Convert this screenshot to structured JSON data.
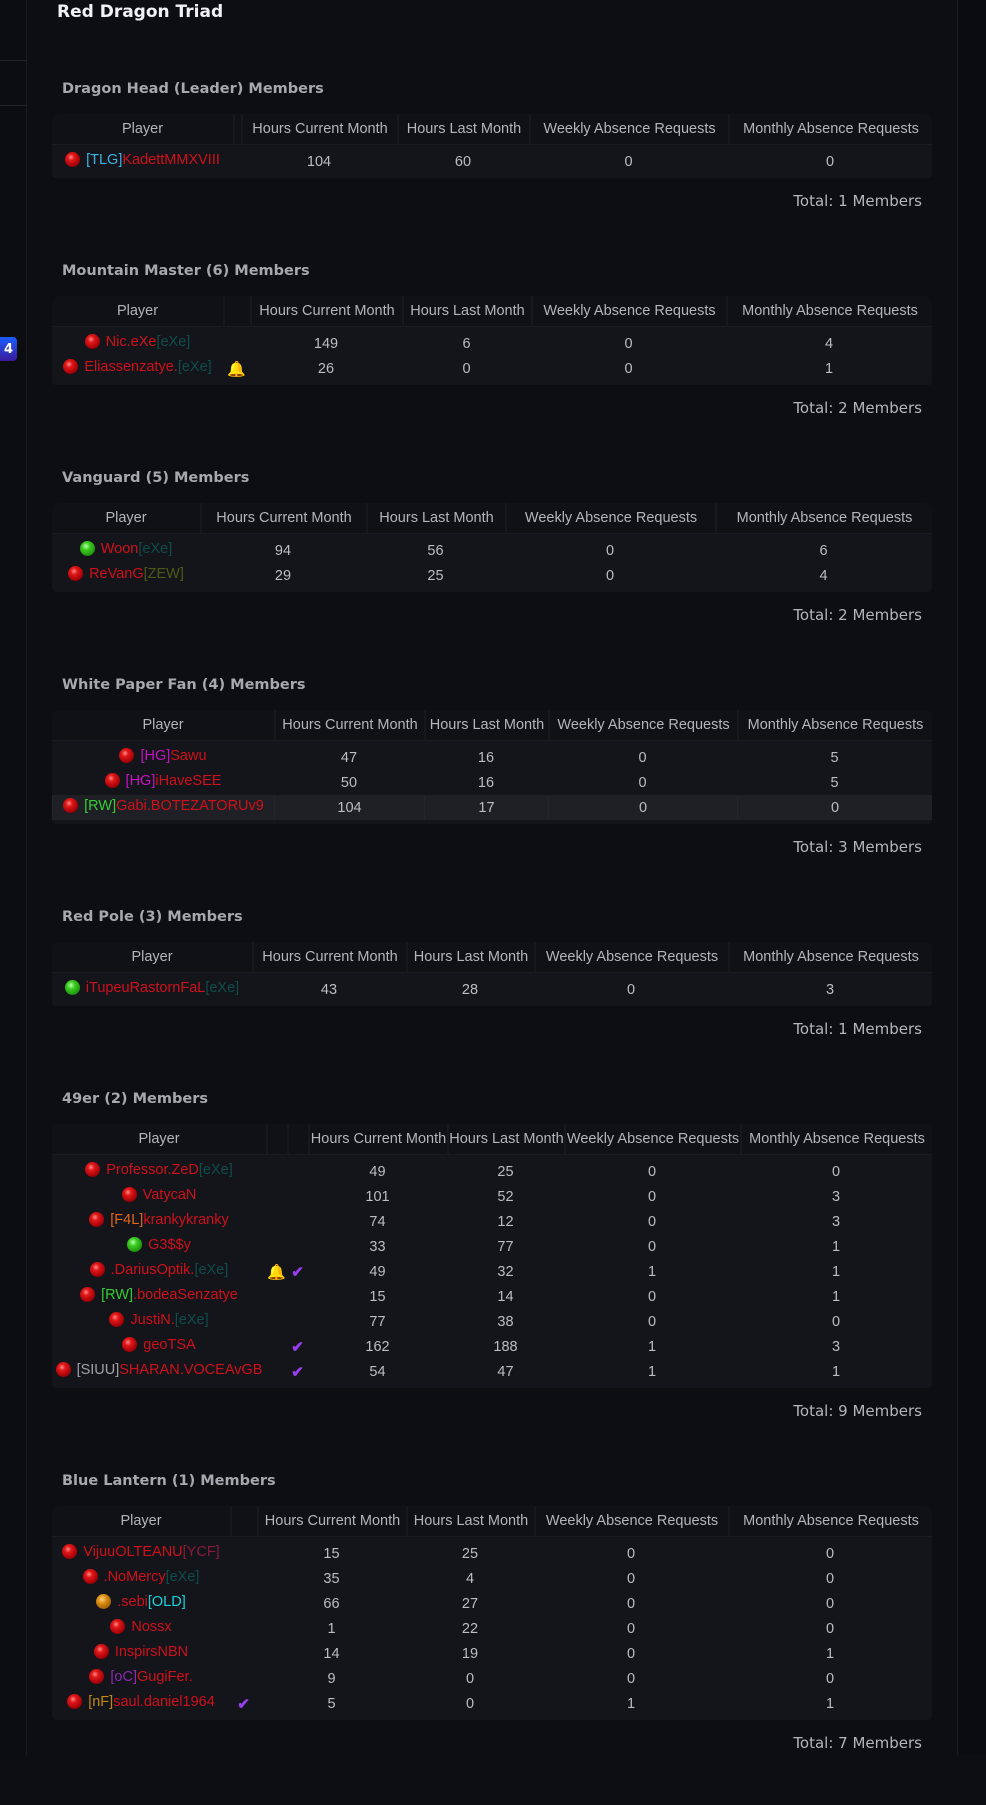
{
  "page_title": "Red Dragon Triad",
  "sidebar": {
    "badge_count": "4"
  },
  "columns": {
    "player": "Player",
    "hcm": "Hours Current Month",
    "hlm": "Hours Last Month",
    "war": "Weekly Absence Requests",
    "mar": "Monthly Absence Requests"
  },
  "colors": {
    "name": "#d0101a",
    "eXe": "#0e4d4a",
    "TLG": "#3bb4e6",
    "ZEW": "#4a5a14",
    "HG": "#c412c4",
    "RW": "#33cc33",
    "F4L": "#e0661a",
    "SIUU": "#a0a0a8",
    "YCF": "#8a1a3a",
    "OLD": "#1ad4e0",
    "oC": "#8a2ab0",
    "nF": "#c08a10",
    "bell": "#f0a500",
    "check": "#9a3cf0"
  },
  "sections": [
    {
      "title": "Dragon Head (Leader) Members",
      "total": "Total: 1 Members",
      "extra_cols": 1,
      "rows": [
        {
          "status": "red",
          "parts": [
            [
              "[TLG]",
              "#3bb4e6"
            ],
            [
              "KadettMMXVIII",
              "#d0101a"
            ]
          ],
          "icons": [],
          "hcm": "104",
          "hlm": "60",
          "war": "0",
          "mar": "0"
        }
      ]
    },
    {
      "title": "Mountain Master (6) Members",
      "total": "Total: 2 Members",
      "extra_cols": 1,
      "rows": [
        {
          "status": "red",
          "parts": [
            [
              "Nic.eXe",
              "#d0101a"
            ],
            [
              "[eXe]",
              "#0e4d4a"
            ]
          ],
          "icons": [],
          "hcm": "149",
          "hlm": "6",
          "war": "0",
          "mar": "4"
        },
        {
          "status": "red",
          "parts": [
            [
              "Eliassenzatye.",
              "#d0101a"
            ],
            [
              "[eXe]",
              "#0e4d4a"
            ]
          ],
          "icons": [
            "bell"
          ],
          "hcm": "26",
          "hlm": "0",
          "war": "0",
          "mar": "1"
        }
      ]
    },
    {
      "title": "Vanguard (5) Members",
      "total": "Total: 2 Members",
      "extra_cols": 0,
      "rows": [
        {
          "status": "green",
          "parts": [
            [
              "Woon",
              "#d0101a"
            ],
            [
              "[eXe]",
              "#0e4d4a"
            ]
          ],
          "icons": [],
          "hcm": "94",
          "hlm": "56",
          "war": "0",
          "mar": "6"
        },
        {
          "status": "red",
          "parts": [
            [
              "ReVanG",
              "#d0101a"
            ],
            [
              "[ZEW]",
              "#4a5a14"
            ]
          ],
          "icons": [],
          "hcm": "29",
          "hlm": "25",
          "war": "0",
          "mar": "4"
        }
      ]
    },
    {
      "title": "White Paper Fan (4) Members",
      "total": "Total: 3 Members",
      "extra_cols": 0,
      "rows": [
        {
          "status": "red",
          "parts": [
            [
              "[HG]",
              "#c412c4"
            ],
            [
              "Sawu",
              "#d0101a"
            ]
          ],
          "icons": [],
          "hcm": "47",
          "hlm": "16",
          "war": "0",
          "mar": "5"
        },
        {
          "status": "red",
          "parts": [
            [
              "[HG]",
              "#c412c4"
            ],
            [
              "iHaveSEE",
              "#d0101a"
            ]
          ],
          "icons": [],
          "hcm": "50",
          "hlm": "16",
          "war": "0",
          "mar": "5"
        },
        {
          "status": "red",
          "parts": [
            [
              "[RW]",
              "#33cc33"
            ],
            [
              "Gabi.BOTEZATORUv9",
              "#d0101a"
            ]
          ],
          "icons": [],
          "hcm": "104",
          "hlm": "17",
          "war": "0",
          "mar": "0",
          "highlighted": true
        }
      ]
    },
    {
      "title": "Red Pole (3) Members",
      "total": "Total: 1 Members",
      "extra_cols": 0,
      "rows": [
        {
          "status": "green",
          "parts": [
            [
              "iTupeuRastornFaL",
              "#d0101a"
            ],
            [
              "[eXe]",
              "#0e4d4a"
            ]
          ],
          "icons": [],
          "hcm": "43",
          "hlm": "28",
          "war": "0",
          "mar": "3"
        }
      ]
    },
    {
      "title": "49er (2) Members",
      "total": "Total: 9 Members",
      "extra_cols": 2,
      "rows": [
        {
          "status": "red",
          "parts": [
            [
              "Professor.ZeD",
              "#d0101a"
            ],
            [
              "[eXe]",
              "#0e4d4a"
            ]
          ],
          "icons": [],
          "hcm": "49",
          "hlm": "25",
          "war": "0",
          "mar": "0"
        },
        {
          "status": "red",
          "parts": [
            [
              "VatycaN",
              "#d0101a"
            ]
          ],
          "icons": [],
          "hcm": "101",
          "hlm": "52",
          "war": "0",
          "mar": "3"
        },
        {
          "status": "red",
          "parts": [
            [
              "[F4L]",
              "#e0661a"
            ],
            [
              "krankykranky",
              "#d0101a"
            ]
          ],
          "icons": [],
          "hcm": "74",
          "hlm": "12",
          "war": "0",
          "mar": "3"
        },
        {
          "status": "green",
          "parts": [
            [
              "G3$$y",
              "#d0101a"
            ]
          ],
          "icons": [],
          "hcm": "33",
          "hlm": "77",
          "war": "0",
          "mar": "1"
        },
        {
          "status": "red",
          "parts": [
            [
              ".DariusOptik.",
              "#d0101a"
            ],
            [
              "[eXe]",
              "#0e4d4a"
            ]
          ],
          "icons": [
            "bell",
            "check"
          ],
          "hcm": "49",
          "hlm": "32",
          "war": "1",
          "mar": "1"
        },
        {
          "status": "red",
          "parts": [
            [
              "[RW]",
              "#33cc33"
            ],
            [
              ".bodeaSenzatye",
              "#d0101a"
            ]
          ],
          "icons": [],
          "hcm": "15",
          "hlm": "14",
          "war": "0",
          "mar": "1"
        },
        {
          "status": "red",
          "parts": [
            [
              "JustiN.",
              "#d0101a"
            ],
            [
              "[eXe]",
              "#0e4d4a"
            ]
          ],
          "icons": [],
          "hcm": "77",
          "hlm": "38",
          "war": "0",
          "mar": "0"
        },
        {
          "status": "red",
          "parts": [
            [
              "geoTSA",
              "#d0101a"
            ]
          ],
          "icons": [
            "",
            "check"
          ],
          "hcm": "162",
          "hlm": "188",
          "war": "1",
          "mar": "3"
        },
        {
          "status": "red",
          "parts": [
            [
              "[SIUU]",
              "#a0a0a8"
            ],
            [
              "SHARAN.VOCEAvGB",
              "#d0101a"
            ]
          ],
          "icons": [
            "",
            "check"
          ],
          "hcm": "54",
          "hlm": "47",
          "war": "1",
          "mar": "1"
        }
      ]
    },
    {
      "title": "Blue Lantern (1) Members",
      "total": "Total: 7 Members",
      "extra_cols": 1,
      "rows": [
        {
          "status": "red",
          "parts": [
            [
              "VijuuOLTEANU",
              "#d0101a"
            ],
            [
              "[YCF]",
              "#8a1a3a"
            ]
          ],
          "icons": [],
          "hcm": "15",
          "hlm": "25",
          "war": "0",
          "mar": "0"
        },
        {
          "status": "red",
          "parts": [
            [
              ".NoMercy",
              "#d0101a"
            ],
            [
              "[eXe]",
              "#0e4d4a"
            ]
          ],
          "icons": [],
          "hcm": "35",
          "hlm": "4",
          "war": "0",
          "mar": "0"
        },
        {
          "status": "orange",
          "parts": [
            [
              ".sebi",
              "#d0101a"
            ],
            [
              "[OLD]",
              "#1ad4e0"
            ]
          ],
          "icons": [],
          "hcm": "66",
          "hlm": "27",
          "war": "0",
          "mar": "0"
        },
        {
          "status": "red",
          "parts": [
            [
              "Nossx",
              "#d0101a"
            ]
          ],
          "icons": [],
          "hcm": "1",
          "hlm": "22",
          "war": "0",
          "mar": "0"
        },
        {
          "status": "red",
          "parts": [
            [
              "InspirsNBN",
              "#d0101a"
            ]
          ],
          "icons": [],
          "hcm": "14",
          "hlm": "19",
          "war": "0",
          "mar": "1"
        },
        {
          "status": "red",
          "parts": [
            [
              "[oC]",
              "#8a2ab0"
            ],
            [
              "GugiFer.",
              "#d0101a"
            ]
          ],
          "icons": [],
          "hcm": "9",
          "hlm": "0",
          "war": "0",
          "mar": "0"
        },
        {
          "status": "red",
          "parts": [
            [
              "[nF]",
              "#c08a10"
            ],
            [
              "saul.daniel1964",
              "#d0101a"
            ]
          ],
          "icons": [
            "check"
          ],
          "hcm": "5",
          "hlm": "0",
          "war": "1",
          "mar": "1"
        }
      ]
    }
  ]
}
